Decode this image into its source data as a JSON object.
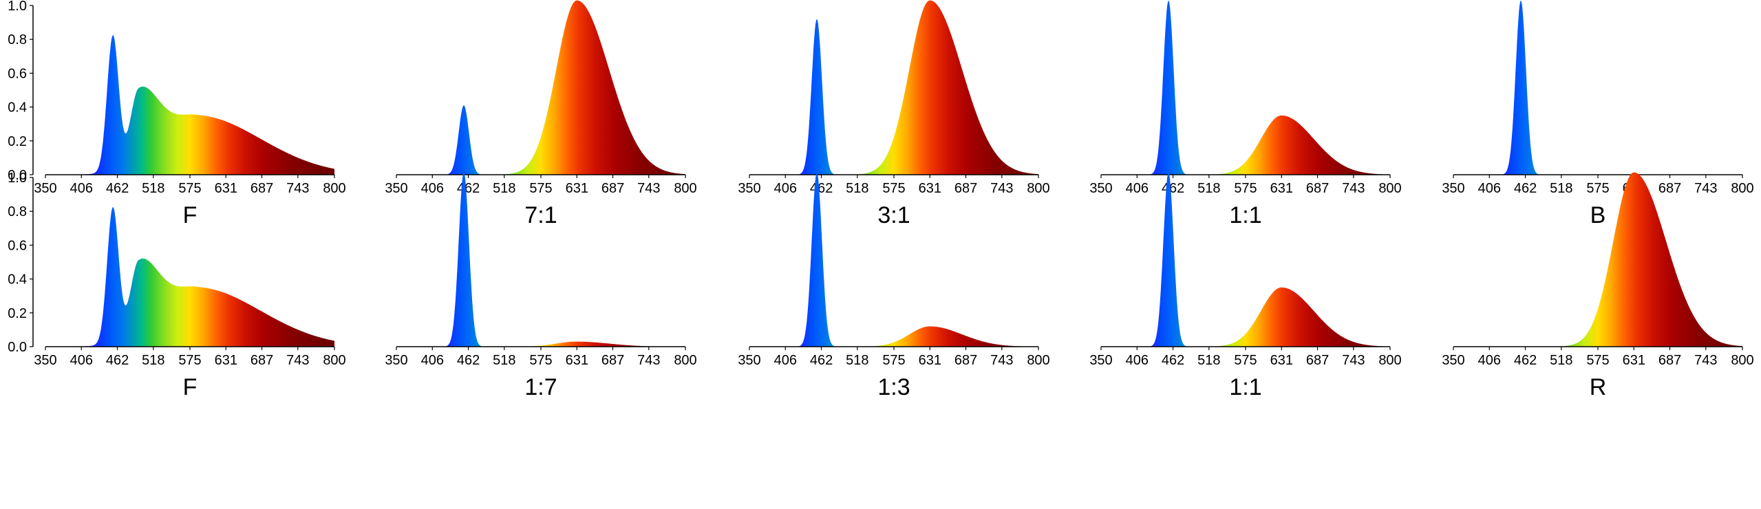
{
  "chart_data": {
    "type": "area",
    "title": "",
    "xlabel": "",
    "ylabel": "",
    "xlim": [
      350,
      800
    ],
    "ylim": [
      0,
      1.0
    ],
    "y_ticks": [
      "0.0",
      "0.2",
      "0.4",
      "0.6",
      "0.8",
      "1.0"
    ],
    "x_ticks": [
      "350",
      "406",
      "462",
      "518",
      "575",
      "631",
      "687",
      "743",
      "800"
    ],
    "fill": "spectral colour gradient (wavelength-coloured)",
    "grid": false,
    "panels": [
      {
        "label": "F",
        "row": 1,
        "col": 1,
        "show_y_axis": true,
        "components": [
          {
            "type": "peak",
            "center": 455,
            "sigma": 9,
            "amplitude": 0.8
          },
          {
            "type": "broad",
            "center": 495,
            "sigma_left": 13,
            "sigma_right": 30,
            "amplitude": 0.42
          },
          {
            "type": "broad",
            "center": 585,
            "sigma_left": 55,
            "sigma_right": 100,
            "amplitude": 0.35
          }
        ],
        "peak_value": 1.0
      },
      {
        "label": "7:1",
        "row": 1,
        "col": 2,
        "show_y_axis": false,
        "components": [
          {
            "type": "peak",
            "center": 455,
            "sigma": 8,
            "amplitude": 0.41
          },
          {
            "type": "broad",
            "center": 631,
            "sigma_left": 32,
            "sigma_right": 50,
            "amplitude": 1.03
          }
        ],
        "peak_value": 1.03
      },
      {
        "label": "3:1",
        "row": 1,
        "col": 3,
        "show_y_axis": false,
        "components": [
          {
            "type": "peak",
            "center": 455,
            "sigma": 8,
            "amplitude": 0.92
          },
          {
            "type": "broad",
            "center": 631,
            "sigma_left": 32,
            "sigma_right": 50,
            "amplitude": 1.03
          }
        ],
        "peak_value": 1.03
      },
      {
        "label": "1:1",
        "row": 1,
        "col": 4,
        "show_y_axis": false,
        "components": [
          {
            "type": "peak",
            "center": 455,
            "sigma": 8,
            "amplitude": 1.03
          },
          {
            "type": "broad",
            "center": 631,
            "sigma_left": 32,
            "sigma_right": 50,
            "amplitude": 0.35
          }
        ],
        "peak_value": 1.03
      },
      {
        "label": "B",
        "row": 1,
        "col": 5,
        "show_y_axis": false,
        "components": [
          {
            "type": "peak",
            "center": 455,
            "sigma": 8,
            "amplitude": 1.03
          }
        ],
        "peak_value": 1.03
      },
      {
        "label": "F",
        "row": 2,
        "col": 1,
        "show_y_axis": true,
        "components": [
          {
            "type": "peak",
            "center": 455,
            "sigma": 9,
            "amplitude": 0.8
          },
          {
            "type": "broad",
            "center": 495,
            "sigma_left": 13,
            "sigma_right": 30,
            "amplitude": 0.42
          },
          {
            "type": "broad",
            "center": 585,
            "sigma_left": 55,
            "sigma_right": 100,
            "amplitude": 0.35
          }
        ],
        "peak_value": 1.0
      },
      {
        "label": "1:7",
        "row": 2,
        "col": 2,
        "show_y_axis": false,
        "components": [
          {
            "type": "peak",
            "center": 455,
            "sigma": 8,
            "amplitude": 1.03
          },
          {
            "type": "broad",
            "center": 631,
            "sigma_left": 32,
            "sigma_right": 50,
            "amplitude": 0.03
          }
        ],
        "peak_value": 1.03
      },
      {
        "label": "1:3",
        "row": 2,
        "col": 3,
        "show_y_axis": false,
        "components": [
          {
            "type": "peak",
            "center": 455,
            "sigma": 8,
            "amplitude": 1.03
          },
          {
            "type": "broad",
            "center": 631,
            "sigma_left": 32,
            "sigma_right": 50,
            "amplitude": 0.12
          }
        ],
        "peak_value": 1.03
      },
      {
        "label": "1:1",
        "row": 2,
        "col": 4,
        "show_y_axis": false,
        "components": [
          {
            "type": "peak",
            "center": 455,
            "sigma": 8,
            "amplitude": 1.03
          },
          {
            "type": "broad",
            "center": 631,
            "sigma_left": 32,
            "sigma_right": 50,
            "amplitude": 0.35
          }
        ],
        "peak_value": 1.03
      },
      {
        "label": "R",
        "row": 2,
        "col": 5,
        "show_y_axis": false,
        "components": [
          {
            "type": "broad",
            "center": 631,
            "sigma_left": 32,
            "sigma_right": 50,
            "amplitude": 1.03
          }
        ],
        "peak_value": 1.03
      }
    ]
  }
}
